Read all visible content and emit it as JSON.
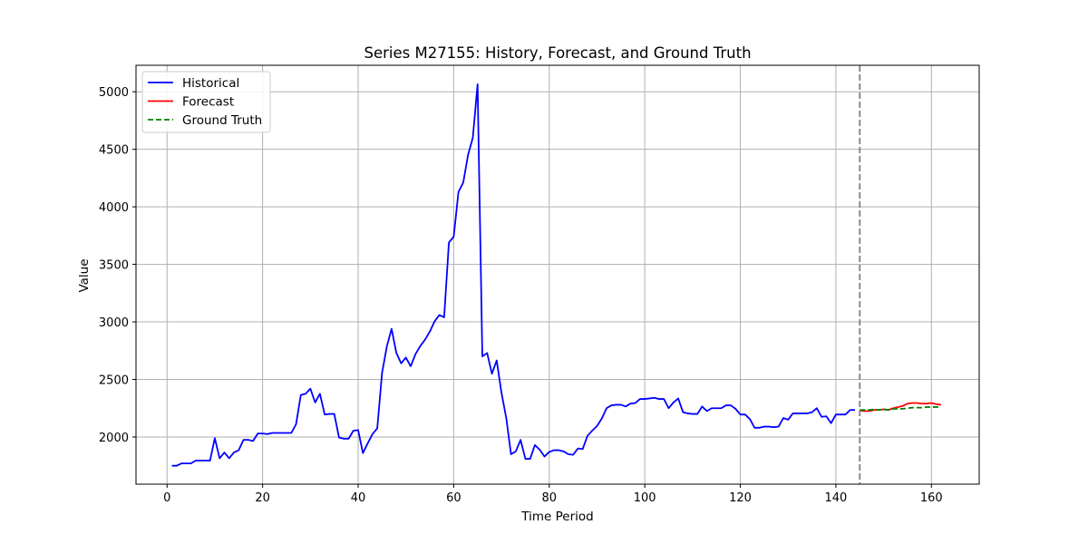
{
  "chart_data": {
    "type": "line",
    "title": "Series M27155: History, Forecast, and Ground Truth",
    "xlabel": "Time Period",
    "ylabel": "Value",
    "xlim": [
      -6.5,
      170
    ],
    "ylim": [
      1590,
      5230
    ],
    "xticks": [
      0,
      20,
      40,
      60,
      80,
      100,
      120,
      140,
      160
    ],
    "yticks": [
      2000,
      2500,
      3000,
      3500,
      4000,
      4500,
      5000
    ],
    "grid": true,
    "legend_position": "top-left",
    "forecast_start_marker": 145,
    "colors": {
      "historical": "#0000ff",
      "forecast": "#ff0000",
      "ground_truth": "#008000",
      "divider": "#808080"
    },
    "series": [
      {
        "name": "Historical",
        "style": "solid",
        "x": [
          1,
          2,
          3,
          4,
          5,
          6,
          7,
          8,
          9,
          10,
          11,
          12,
          13,
          14,
          15,
          16,
          17,
          18,
          19,
          20,
          21,
          22,
          23,
          24,
          25,
          26,
          27,
          28,
          29,
          30,
          31,
          32,
          33,
          34,
          35,
          36,
          37,
          38,
          39,
          40,
          41,
          42,
          43,
          44,
          45,
          46,
          47,
          48,
          49,
          50,
          51,
          52,
          53,
          54,
          55,
          56,
          57,
          58,
          59,
          60,
          61,
          62,
          63,
          64,
          65,
          66,
          67,
          68,
          69,
          70,
          71,
          72,
          73,
          74,
          75,
          76,
          77,
          78,
          79,
          80,
          81,
          82,
          83,
          84,
          85,
          86,
          87,
          88,
          89,
          90,
          91,
          92,
          93,
          94,
          95,
          96,
          97,
          98,
          99,
          100,
          101,
          102,
          103,
          104,
          105,
          106,
          107,
          108,
          109,
          110,
          111,
          112,
          113,
          114,
          115,
          116,
          117,
          118,
          119,
          120,
          121,
          122,
          123,
          124,
          125,
          126,
          127,
          128,
          129,
          130,
          131,
          132,
          133,
          134,
          135,
          136,
          137,
          138,
          139,
          140,
          141,
          142,
          143,
          144
        ],
        "values": [
          1750,
          1750,
          1770,
          1770,
          1770,
          1795,
          1795,
          1795,
          1795,
          1990,
          1815,
          1865,
          1815,
          1865,
          1885,
          1975,
          1975,
          1965,
          2030,
          2030,
          2025,
          2035,
          2035,
          2035,
          2035,
          2035,
          2110,
          2365,
          2375,
          2420,
          2300,
          2375,
          2195,
          2200,
          2200,
          1995,
          1985,
          1985,
          2055,
          2060,
          1860,
          1945,
          2025,
          2075,
          2555,
          2785,
          2940,
          2730,
          2640,
          2690,
          2615,
          2720,
          2790,
          2845,
          2915,
          3005,
          3060,
          3040,
          3690,
          3740,
          4130,
          4210,
          4450,
          4600,
          5065,
          2700,
          2730,
          2550,
          2665,
          2385,
          2165,
          1850,
          1875,
          1975,
          1810,
          1810,
          1930,
          1890,
          1830,
          1870,
          1885,
          1885,
          1875,
          1850,
          1845,
          1900,
          1895,
          2010,
          2055,
          2095,
          2160,
          2250,
          2275,
          2280,
          2280,
          2265,
          2290,
          2295,
          2330,
          2330,
          2335,
          2340,
          2330,
          2330,
          2250,
          2300,
          2335,
          2215,
          2205,
          2200,
          2200,
          2265,
          2225,
          2250,
          2250,
          2250,
          2275,
          2275,
          2245,
          2195,
          2195,
          2155,
          2080,
          2080,
          2090,
          2090,
          2085,
          2090,
          2165,
          2150,
          2205,
          2205,
          2205,
          2205,
          2215,
          2250,
          2175,
          2180,
          2120,
          2195,
          2195,
          2195,
          2235,
          2235
        ]
      },
      {
        "name": "Forecast",
        "style": "solid",
        "x": [
          145,
          146,
          147,
          148,
          149,
          150,
          151,
          152,
          153,
          154,
          155,
          156,
          157,
          158,
          159,
          160,
          161,
          162
        ],
        "values": [
          2230,
          2225,
          2225,
          2235,
          2235,
          2240,
          2235,
          2250,
          2260,
          2270,
          2290,
          2295,
          2295,
          2290,
          2290,
          2295,
          2285,
          2280
        ]
      },
      {
        "name": "Ground Truth",
        "style": "dashed",
        "x": [
          145,
          146,
          147,
          148,
          149,
          150,
          151,
          152,
          153,
          154,
          155,
          156,
          157,
          158,
          159,
          160,
          161,
          162
        ],
        "values": [
          2235,
          2235,
          2235,
          2240,
          2235,
          2240,
          2235,
          2245,
          2245,
          2245,
          2250,
          2255,
          2255,
          2255,
          2260,
          2260,
          2260,
          2260
        ]
      }
    ]
  }
}
